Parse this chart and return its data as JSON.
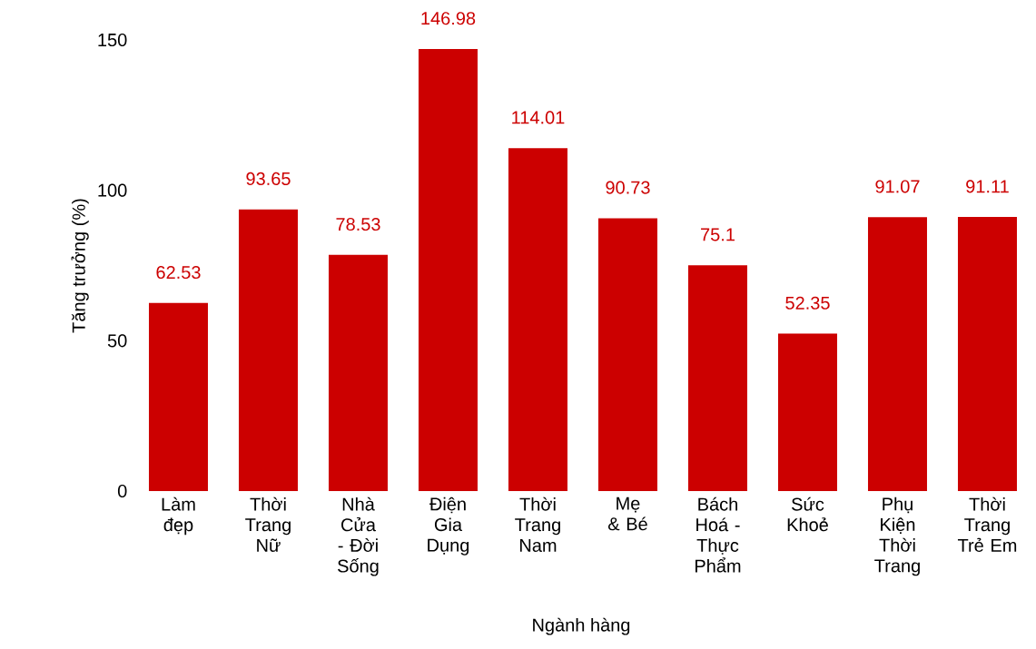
{
  "chart_data": {
    "type": "bar",
    "xlabel": "Ngành hàng",
    "ylabel": "Tăng trưởng (%)",
    "categories": [
      "Làm đẹp",
      "Thời Trang Nữ",
      "Nhà Cửa - Đời Sống",
      "Điện Gia Dụng",
      "Thời Trang Nam",
      "Mẹ & Bé",
      "Bách Hoá - Thực Phẩm",
      "Sức Khoẻ",
      "Phụ Kiện Thời Trang",
      "Thời Trang Trẻ Em"
    ],
    "values": [
      62.53,
      93.65,
      78.53,
      146.98,
      114.01,
      90.73,
      75.1,
      52.35,
      91.07,
      91.11
    ],
    "color": "#cc0000",
    "ylim": [
      0,
      150
    ],
    "yticks": [
      0,
      50,
      100,
      150
    ],
    "data_labels": true
  }
}
